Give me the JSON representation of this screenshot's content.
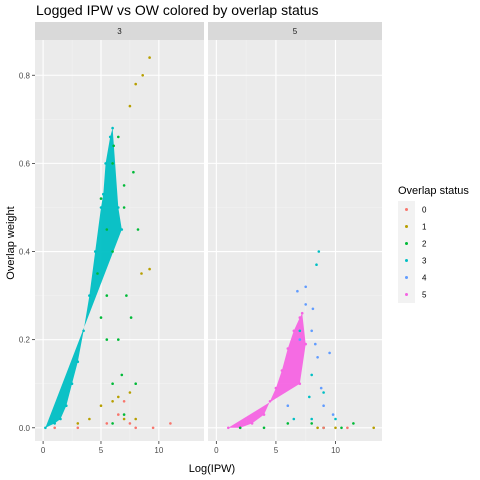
{
  "chart_data": {
    "type": "scatter",
    "title": "Logged IPW vs OW colored by overlap status",
    "xlabel": "Log(IPW)",
    "ylabel": "Overlap weight",
    "xlim": [
      -0.7,
      13.9
    ],
    "ylim": [
      -0.03,
      0.88
    ],
    "x_ticks": [
      0,
      5,
      10
    ],
    "y_ticks": [
      0.0,
      0.2,
      0.4,
      0.6,
      0.8
    ],
    "x_tick_labels": [
      "0",
      "5",
      "10"
    ],
    "y_tick_labels": [
      "0.0",
      "0.2",
      "0.4",
      "0.6",
      "0.8"
    ],
    "facets": [
      "3",
      "5"
    ],
    "legend": {
      "title": "Overlap status",
      "placement": "right",
      "entries": [
        {
          "label": "0",
          "color": "#F8766D"
        },
        {
          "label": "1",
          "color": "#B79F00"
        },
        {
          "label": "2",
          "color": "#00BA38"
        },
        {
          "label": "3",
          "color": "#00BFC4"
        },
        {
          "label": "4",
          "color": "#619CFF"
        },
        {
          "label": "5",
          "color": "#F564E3"
        }
      ]
    },
    "panel_background": "#EBEBEB",
    "grid": true,
    "series": [
      {
        "name": "3",
        "facet": "3",
        "color": "#00BFC4",
        "points": [
          [
            0.2,
            0.0
          ],
          [
            1.0,
            0.01
          ],
          [
            1.5,
            0.02
          ],
          [
            2.0,
            0.05
          ],
          [
            2.5,
            0.1
          ],
          [
            3.0,
            0.15
          ],
          [
            3.5,
            0.22
          ],
          [
            4.0,
            0.3
          ],
          [
            4.5,
            0.4
          ],
          [
            5.0,
            0.5
          ],
          [
            5.2,
            0.53
          ],
          [
            5.4,
            0.6
          ],
          [
            5.8,
            0.66
          ],
          [
            6.0,
            0.68
          ],
          [
            6.5,
            0.5
          ],
          [
            6.8,
            0.45
          ]
        ]
      },
      {
        "name": "2",
        "facet": "3",
        "color": "#00BA38",
        "points": [
          [
            5.0,
            0.52
          ],
          [
            5.5,
            0.45
          ],
          [
            6.0,
            0.6
          ],
          [
            6.1,
            0.64
          ],
          [
            6.5,
            0.66
          ],
          [
            7.0,
            0.55
          ],
          [
            7.0,
            0.5
          ],
          [
            6.0,
            0.4
          ],
          [
            5.5,
            0.3
          ],
          [
            4.7,
            0.35
          ],
          [
            5.0,
            0.25
          ],
          [
            6.5,
            0.2
          ],
          [
            7.2,
            0.3
          ],
          [
            7.6,
            0.25
          ],
          [
            6.0,
            0.1
          ],
          [
            6.8,
            0.12
          ],
          [
            8.0,
            0.1
          ],
          [
            6.0,
            0.01
          ],
          [
            7.0,
            0.03
          ],
          [
            7.8,
            0.58
          ],
          [
            8.2,
            0.45
          ],
          [
            5.5,
            0.2
          ]
        ]
      },
      {
        "name": "1",
        "facet": "3",
        "color": "#B79F00",
        "points": [
          [
            9.2,
            0.84
          ],
          [
            8.6,
            0.8
          ],
          [
            8.0,
            0.78
          ],
          [
            7.5,
            0.73
          ],
          [
            8.5,
            0.35
          ],
          [
            9.2,
            0.36
          ],
          [
            5.0,
            0.05
          ],
          [
            6.0,
            0.06
          ],
          [
            7.0,
            0.02
          ],
          [
            8.0,
            0.02
          ],
          [
            3.0,
            0.01
          ],
          [
            4.0,
            0.02
          ],
          [
            7.5,
            0.08
          ],
          [
            6.5,
            0.07
          ]
        ]
      },
      {
        "name": "0",
        "facet": "3",
        "color": "#F8766D",
        "points": [
          [
            1.0,
            0.0
          ],
          [
            3.0,
            0.0
          ],
          [
            5.5,
            0.01
          ],
          [
            6.5,
            0.03
          ],
          [
            7.0,
            0.06
          ],
          [
            7.5,
            0.01
          ],
          [
            8.0,
            0.0
          ],
          [
            9.5,
            0.0
          ],
          [
            11.0,
            0.01
          ]
        ]
      },
      {
        "name": "5",
        "facet": "5",
        "color": "#F564E3",
        "points": [
          [
            1.0,
            0.0
          ],
          [
            2.0,
            0.0
          ],
          [
            3.0,
            0.01
          ],
          [
            4.0,
            0.03
          ],
          [
            4.5,
            0.06
          ],
          [
            5.0,
            0.09
          ],
          [
            5.5,
            0.13
          ],
          [
            6.0,
            0.18
          ],
          [
            6.5,
            0.22
          ],
          [
            7.0,
            0.25
          ],
          [
            7.2,
            0.26
          ],
          [
            7.5,
            0.19
          ],
          [
            7.0,
            0.1
          ]
        ]
      },
      {
        "name": "4",
        "facet": "5",
        "color": "#619CFF",
        "points": [
          [
            6.0,
            0.05
          ],
          [
            7.0,
            0.2
          ],
          [
            7.5,
            0.28
          ],
          [
            8.0,
            0.22
          ],
          [
            8.3,
            0.19
          ],
          [
            8.5,
            0.16
          ],
          [
            9.5,
            0.17
          ],
          [
            8.8,
            0.09
          ],
          [
            9.0,
            0.05
          ],
          [
            9.8,
            0.03
          ],
          [
            7.5,
            0.32
          ],
          [
            8.1,
            0.27
          ],
          [
            6.8,
            0.31
          ]
        ]
      },
      {
        "name": "3",
        "facet": "5",
        "color": "#00BFC4",
        "points": [
          [
            7.0,
            0.22
          ],
          [
            8.0,
            0.12
          ],
          [
            8.6,
            0.4
          ],
          [
            8.4,
            0.37
          ],
          [
            9.0,
            0.08
          ],
          [
            7.8,
            0.07
          ],
          [
            6.5,
            0.02
          ],
          [
            8.0,
            0.02
          ],
          [
            10.0,
            0.02
          ]
        ]
      },
      {
        "name": "2",
        "facet": "5",
        "color": "#00BA38",
        "points": [
          [
            2.0,
            0.0
          ],
          [
            4.0,
            0.0
          ],
          [
            6.0,
            0.01
          ],
          [
            8.0,
            0.01
          ],
          [
            9.0,
            0.0
          ],
          [
            10.5,
            0.0
          ],
          [
            11.5,
            0.01
          ]
        ]
      },
      {
        "name": "1",
        "facet": "5",
        "color": "#B79F00",
        "points": [
          [
            13.2,
            0.0
          ],
          [
            8.5,
            0.0
          ],
          [
            10.0,
            0.0
          ]
        ]
      },
      {
        "name": "0",
        "facet": "5",
        "color": "#F8766D",
        "points": [
          [
            9.0,
            0.0
          ],
          [
            11.0,
            0.0
          ]
        ]
      }
    ]
  }
}
